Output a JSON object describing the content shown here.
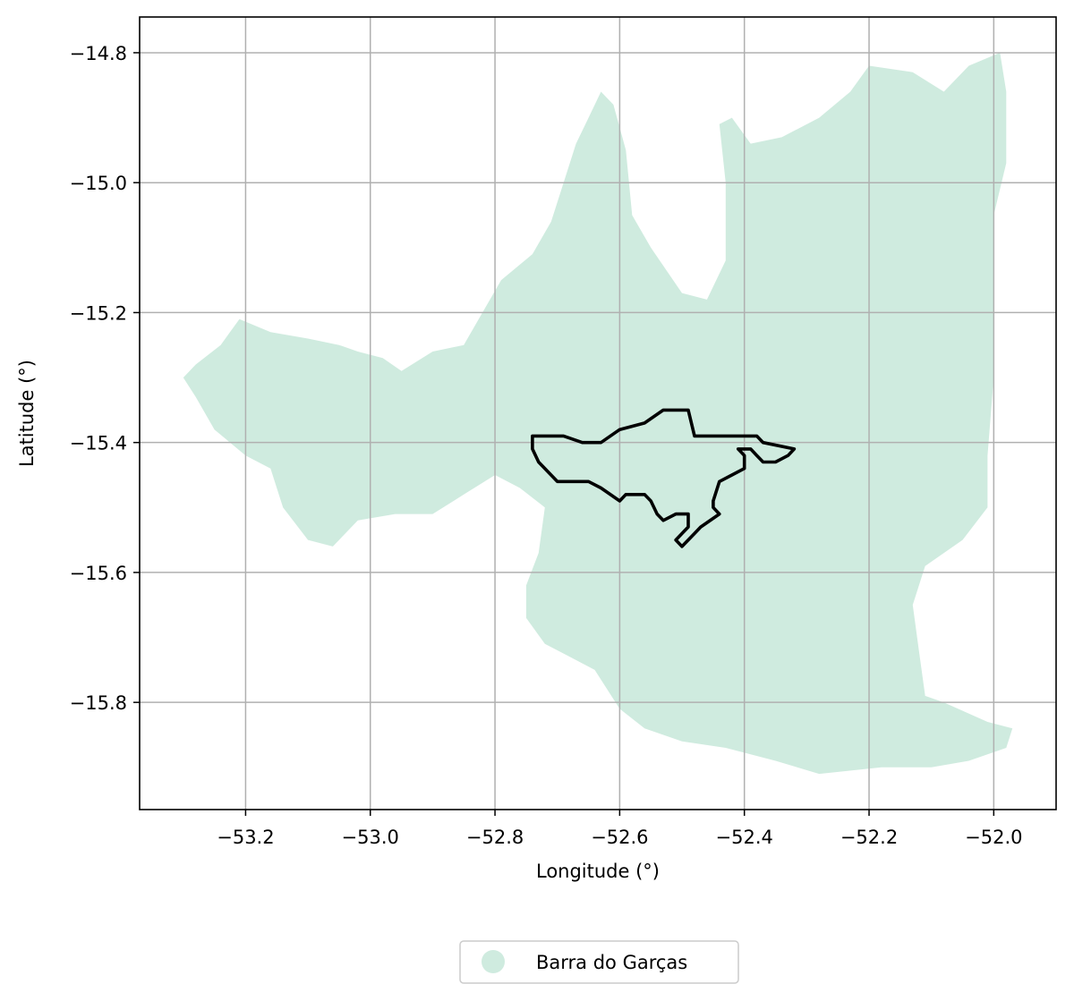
{
  "chart_data": {
    "type": "map",
    "xlabel": "Longitude (°)",
    "ylabel": "Latitude (°)",
    "xlim": [
      -53.37,
      -51.9
    ],
    "ylim": [
      -15.965,
      -14.745
    ],
    "xticks": [
      -53.2,
      -53.0,
      -52.8,
      -52.6,
      -52.4,
      -52.2,
      -52.0
    ],
    "yticks": [
      -14.8,
      -15.0,
      -15.2,
      -15.4,
      -15.6,
      -15.8
    ],
    "xtick_labels": [
      "−53.2",
      "−53.0",
      "−52.8",
      "−52.6",
      "−52.4",
      "−52.2",
      "−52.0"
    ],
    "ytick_labels": [
      "−14.8",
      "−15.0",
      "−15.2",
      "−15.4",
      "−15.6",
      "−15.8"
    ],
    "grid": true,
    "legend_position": "bottom-center",
    "colors": {
      "region_fill": "#cfebdf",
      "outline": "#000000",
      "grid": "#b0b0b0"
    },
    "legend": [
      {
        "label": "Barra do Garças",
        "color": "#cfebdf",
        "marker": "circle"
      }
    ],
    "region": {
      "name": "Barra do Garças",
      "polygon": [
        [
          -53.3,
          -15.3
        ],
        [
          -53.28,
          -15.28
        ],
        [
          -53.24,
          -15.25
        ],
        [
          -53.21,
          -15.21
        ],
        [
          -53.16,
          -15.23
        ],
        [
          -53.1,
          -15.24
        ],
        [
          -53.05,
          -15.25
        ],
        [
          -53.02,
          -15.26
        ],
        [
          -52.98,
          -15.27
        ],
        [
          -52.95,
          -15.29
        ],
        [
          -52.9,
          -15.26
        ],
        [
          -52.85,
          -15.25
        ],
        [
          -52.82,
          -15.2
        ],
        [
          -52.79,
          -15.15
        ],
        [
          -52.74,
          -15.11
        ],
        [
          -52.71,
          -15.06
        ],
        [
          -52.69,
          -15.0
        ],
        [
          -52.67,
          -14.94
        ],
        [
          -52.65,
          -14.9
        ],
        [
          -52.63,
          -14.86
        ],
        [
          -52.61,
          -14.88
        ],
        [
          -52.59,
          -14.95
        ],
        [
          -52.58,
          -15.05
        ],
        [
          -52.55,
          -15.1
        ],
        [
          -52.5,
          -15.17
        ],
        [
          -52.46,
          -15.18
        ],
        [
          -52.43,
          -15.12
        ],
        [
          -52.43,
          -15.0
        ],
        [
          -52.44,
          -14.91
        ],
        [
          -52.42,
          -14.9
        ],
        [
          -52.39,
          -14.94
        ],
        [
          -52.34,
          -14.93
        ],
        [
          -52.28,
          -14.9
        ],
        [
          -52.23,
          -14.86
        ],
        [
          -52.2,
          -14.82
        ],
        [
          -52.13,
          -14.83
        ],
        [
          -52.08,
          -14.86
        ],
        [
          -52.04,
          -14.82
        ],
        [
          -51.99,
          -14.8
        ],
        [
          -51.98,
          -14.86
        ],
        [
          -51.98,
          -14.97
        ],
        [
          -52.0,
          -15.05
        ],
        [
          -52.0,
          -15.18
        ],
        [
          -52.0,
          -15.3
        ],
        [
          -52.01,
          -15.42
        ],
        [
          -52.01,
          -15.5
        ],
        [
          -52.05,
          -15.55
        ],
        [
          -52.11,
          -15.59
        ],
        [
          -52.13,
          -15.65
        ],
        [
          -52.12,
          -15.72
        ],
        [
          -52.11,
          -15.79
        ],
        [
          -52.08,
          -15.8
        ],
        [
          -52.01,
          -15.83
        ],
        [
          -51.97,
          -15.84
        ],
        [
          -51.98,
          -15.87
        ],
        [
          -52.04,
          -15.89
        ],
        [
          -52.1,
          -15.9
        ],
        [
          -52.18,
          -15.9
        ],
        [
          -52.28,
          -15.91
        ],
        [
          -52.35,
          -15.89
        ],
        [
          -52.43,
          -15.87
        ],
        [
          -52.5,
          -15.86
        ],
        [
          -52.56,
          -15.84
        ],
        [
          -52.6,
          -15.81
        ],
        [
          -52.64,
          -15.75
        ],
        [
          -52.68,
          -15.73
        ],
        [
          -52.72,
          -15.71
        ],
        [
          -52.75,
          -15.67
        ],
        [
          -52.75,
          -15.62
        ],
        [
          -52.73,
          -15.57
        ],
        [
          -52.72,
          -15.5
        ],
        [
          -52.76,
          -15.47
        ],
        [
          -52.8,
          -15.45
        ],
        [
          -52.85,
          -15.48
        ],
        [
          -52.9,
          -15.51
        ],
        [
          -52.96,
          -15.51
        ],
        [
          -53.02,
          -15.52
        ],
        [
          -53.06,
          -15.56
        ],
        [
          -53.1,
          -15.55
        ],
        [
          -53.14,
          -15.5
        ],
        [
          -53.16,
          -15.44
        ],
        [
          -53.2,
          -15.42
        ],
        [
          -53.25,
          -15.38
        ],
        [
          -53.28,
          -15.33
        ]
      ]
    },
    "outline": {
      "polygon": [
        [
          -52.74,
          -15.39
        ],
        [
          -52.69,
          -15.39
        ],
        [
          -52.66,
          -15.4
        ],
        [
          -52.63,
          -15.4
        ],
        [
          -52.6,
          -15.38
        ],
        [
          -52.56,
          -15.37
        ],
        [
          -52.53,
          -15.35
        ],
        [
          -52.5,
          -15.35
        ],
        [
          -52.49,
          -15.35
        ],
        [
          -52.48,
          -15.39
        ],
        [
          -52.43,
          -15.39
        ],
        [
          -52.38,
          -15.39
        ],
        [
          -52.37,
          -15.4
        ],
        [
          -52.32,
          -15.41
        ],
        [
          -52.33,
          -15.42
        ],
        [
          -52.35,
          -15.43
        ],
        [
          -52.37,
          -15.43
        ],
        [
          -52.38,
          -15.42
        ],
        [
          -52.39,
          -15.41
        ],
        [
          -52.4,
          -15.41
        ],
        [
          -52.41,
          -15.41
        ],
        [
          -52.4,
          -15.42
        ],
        [
          -52.4,
          -15.44
        ],
        [
          -52.42,
          -15.45
        ],
        [
          -52.44,
          -15.46
        ],
        [
          -52.45,
          -15.49
        ],
        [
          -52.45,
          -15.5
        ],
        [
          -52.44,
          -15.51
        ],
        [
          -52.47,
          -15.53
        ],
        [
          -52.48,
          -15.54
        ],
        [
          -52.5,
          -15.56
        ],
        [
          -52.51,
          -15.55
        ],
        [
          -52.49,
          -15.53
        ],
        [
          -52.49,
          -15.51
        ],
        [
          -52.51,
          -15.51
        ],
        [
          -52.53,
          -15.52
        ],
        [
          -52.54,
          -15.51
        ],
        [
          -52.55,
          -15.49
        ],
        [
          -52.56,
          -15.48
        ],
        [
          -52.59,
          -15.48
        ],
        [
          -52.6,
          -15.49
        ],
        [
          -52.63,
          -15.47
        ],
        [
          -52.65,
          -15.46
        ],
        [
          -52.69,
          -15.46
        ],
        [
          -52.7,
          -15.46
        ],
        [
          -52.73,
          -15.43
        ],
        [
          -52.74,
          -15.41
        ]
      ]
    }
  }
}
